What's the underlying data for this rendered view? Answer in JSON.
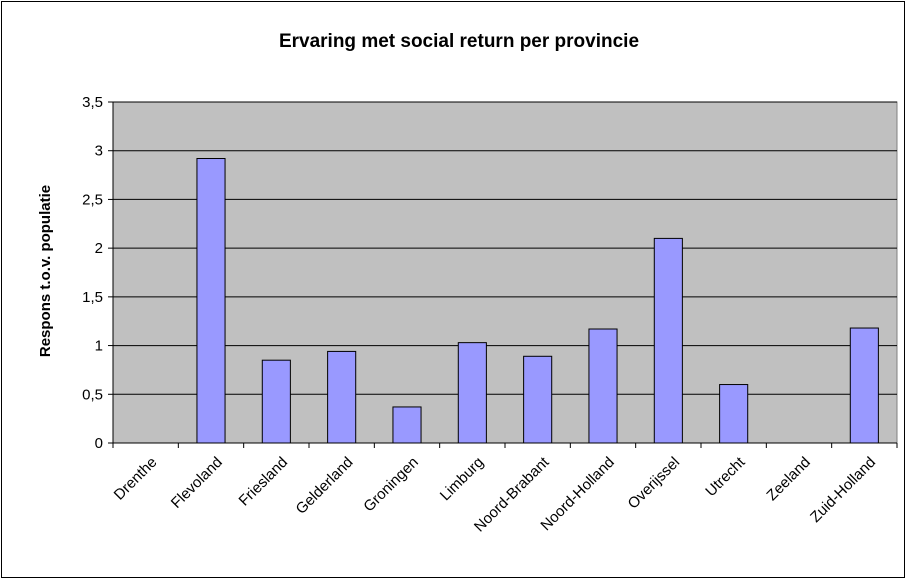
{
  "chart_data": {
    "type": "bar",
    "title": "Ervaring met social return per provincie",
    "xlabel": "",
    "ylabel": "Respons t.o.v. populatie",
    "categories": [
      "Drenthe",
      "Flevoland",
      "Friesland",
      "Gelderland",
      "Groningen",
      "Limburg",
      "Noord-Brabant",
      "Noord-Holland",
      "Overijssel",
      "Utrecht",
      "Zeeland",
      "Zuid-Holland"
    ],
    "values": [
      0,
      2.92,
      0.85,
      0.94,
      0.37,
      1.03,
      0.89,
      1.17,
      2.1,
      0.6,
      0,
      1.18
    ],
    "ylim": [
      0,
      3.5
    ],
    "yticks": [
      0,
      0.5,
      1,
      1.5,
      2,
      2.5,
      3,
      3.5
    ],
    "ytick_labels": [
      "0",
      "0,5",
      "1",
      "1,5",
      "2",
      "2,5",
      "3",
      "3,5"
    ],
    "grid": true,
    "colors": {
      "plot_background": "#c0c0c0",
      "bar_fill": "#9999ff",
      "bar_stroke": "#000000"
    }
  }
}
